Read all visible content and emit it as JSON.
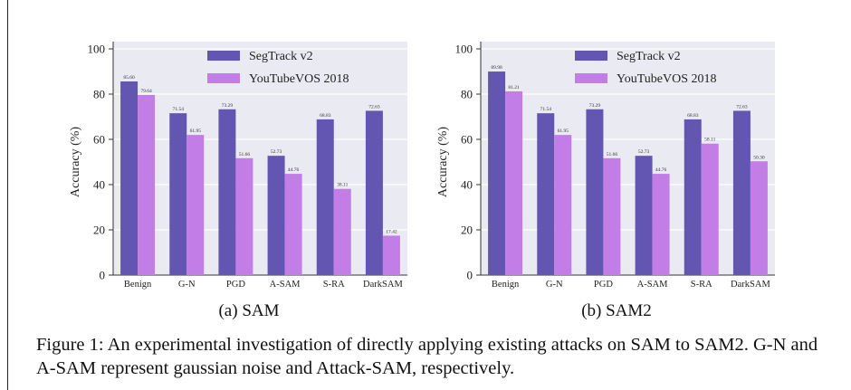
{
  "chart_data": [
    {
      "type": "bar",
      "subcaption": "(a) SAM",
      "ylabel": "Accuracy (%)",
      "ylim": [
        0,
        100
      ],
      "yticks": [
        0,
        20,
        40,
        60,
        80,
        100
      ],
      "grid": true,
      "legend_position": "top-center",
      "categories": [
        "Benign",
        "G-N",
        "PGD",
        "A-SAM",
        "S-RA",
        "DarkSAM"
      ],
      "series": [
        {
          "name": "SegTrack v2",
          "color": "#6356b3",
          "values": [
            85.6,
            71.54,
            73.29,
            52.73,
            68.83,
            72.63
          ],
          "labels": [
            "85.60",
            "71.54",
            "73.29",
            "52.73",
            "68.83",
            "72.63"
          ]
        },
        {
          "name": "YouTubeVOS 2018",
          "color": "#c27ee6",
          "values": [
            79.64,
            61.95,
            51.66,
            44.76,
            38.11,
            17.42
          ],
          "labels": [
            "79.64",
            "61.95",
            "51.66",
            "44.76",
            "38.11",
            "17.42"
          ]
        }
      ]
    },
    {
      "type": "bar",
      "subcaption": "(b) SAM2",
      "ylabel": "Accuracy (%)",
      "ylim": [
        0,
        100
      ],
      "yticks": [
        0,
        20,
        40,
        60,
        80,
        100
      ],
      "grid": true,
      "legend_position": "top-center",
      "categories": [
        "Benign",
        "G-N",
        "PGD",
        "A-SAM",
        "S-RA",
        "DarkSAM"
      ],
      "series": [
        {
          "name": "SegTrack v2",
          "color": "#6356b3",
          "values": [
            89.98,
            71.54,
            73.29,
            52.73,
            68.83,
            72.63
          ],
          "labels": [
            "89.98",
            "71.54",
            "73.29",
            "52.73",
            "68.83",
            "72.63"
          ]
        },
        {
          "name": "YouTubeVOS 2018",
          "color": "#c27ee6",
          "values": [
            81.21,
            61.95,
            51.66,
            44.76,
            58.11,
            50.3
          ],
          "labels": [
            "81.21",
            "61.95",
            "51.66",
            "44.76",
            "58.11",
            "50.30"
          ]
        }
      ]
    }
  ],
  "caption": {
    "label": "Figure 1:",
    "text": "An experimental investigation of directly applying existing attacks on SAM to SAM2. G-N and A-SAM represent gaussian noise and Attack-SAM, respectively."
  }
}
